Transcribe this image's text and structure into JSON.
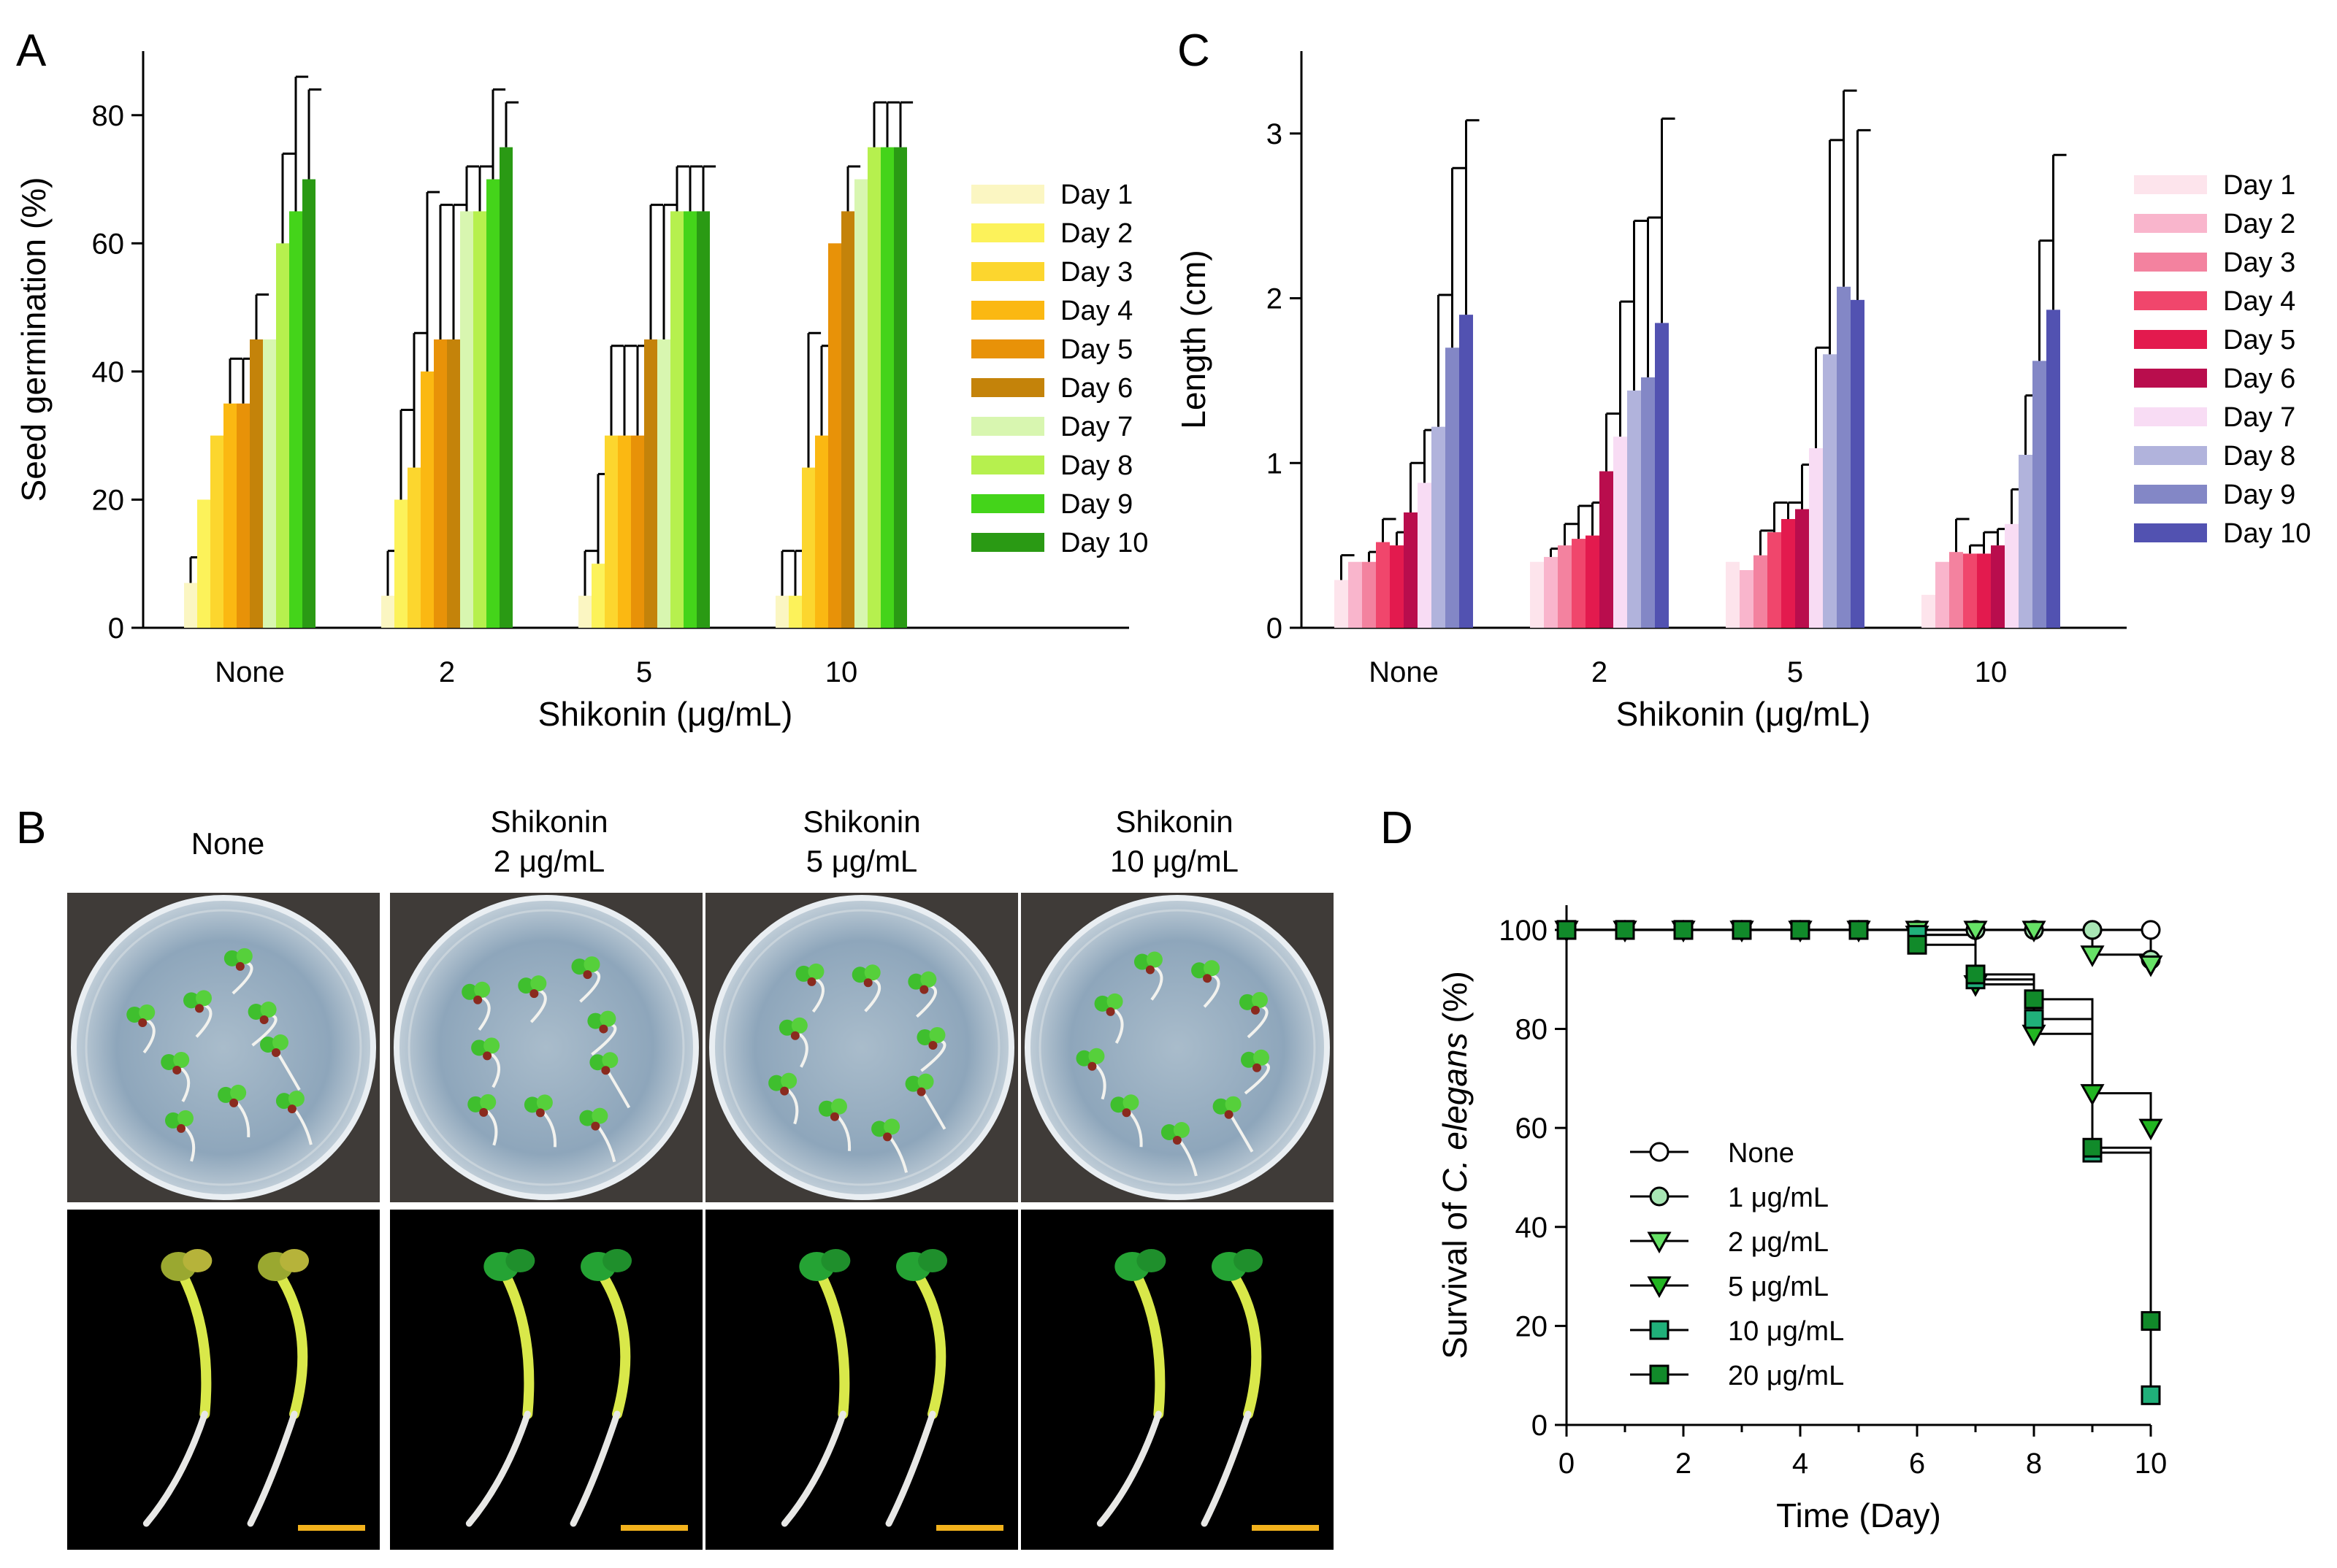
{
  "panels": {
    "A": "A",
    "B": "B",
    "C": "C",
    "D": "D"
  },
  "chart_data": [
    {
      "id": "A",
      "type": "bar",
      "title": "",
      "xlabel": "Shikonin (μg/mL)",
      "ylabel": "Seed germination (%)",
      "ylim": [
        0,
        90
      ],
      "yticks": [
        0,
        20,
        40,
        60,
        80
      ],
      "categories": [
        "None",
        "2",
        "5",
        "10"
      ],
      "grid": false,
      "legend": "right",
      "series": [
        {
          "name": "Day 1",
          "color": "#fbf6c2",
          "values": [
            7,
            5,
            5,
            5
          ],
          "errors": [
            4,
            7,
            7,
            7
          ]
        },
        {
          "name": "Day 2",
          "color": "#fcf25a",
          "values": [
            20,
            20,
            10,
            5
          ],
          "errors": [
            0,
            14,
            14,
            7
          ]
        },
        {
          "name": "Day 3",
          "color": "#fcd62e",
          "values": [
            30,
            25,
            30,
            25
          ],
          "errors": [
            0,
            21,
            14,
            21
          ]
        },
        {
          "name": "Day 4",
          "color": "#fbb812",
          "values": [
            35,
            40,
            30,
            30
          ],
          "errors": [
            7,
            28,
            14,
            14
          ]
        },
        {
          "name": "Day 5",
          "color": "#e89208",
          "values": [
            35,
            45,
            30,
            60
          ],
          "errors": [
            7,
            21,
            14,
            0
          ]
        },
        {
          "name": "Day 6",
          "color": "#c4830a",
          "values": [
            45,
            45,
            45,
            65
          ],
          "errors": [
            7,
            21,
            21,
            7
          ]
        },
        {
          "name": "Day 7",
          "color": "#d8f6b0",
          "values": [
            45,
            65,
            45,
            70
          ],
          "errors": [
            0,
            7,
            21,
            0
          ]
        },
        {
          "name": "Day 8",
          "color": "#b6f04e",
          "values": [
            60,
            65,
            65,
            75
          ],
          "errors": [
            14,
            7,
            7,
            7
          ]
        },
        {
          "name": "Day 9",
          "color": "#44d41a",
          "values": [
            65,
            70,
            65,
            75
          ],
          "errors": [
            21,
            14,
            7,
            7
          ]
        },
        {
          "name": "Day 10",
          "color": "#2a9a14",
          "values": [
            70,
            75,
            65,
            75
          ],
          "errors": [
            14,
            7,
            7,
            7
          ]
        }
      ]
    },
    {
      "id": "C",
      "type": "bar",
      "title": "",
      "xlabel": "Shikonin (μg/mL)",
      "ylabel": "Length (cm)",
      "ylim": [
        0,
        3.5
      ],
      "yticks": [
        0,
        1,
        2,
        3
      ],
      "categories": [
        "None",
        "2",
        "5",
        "10"
      ],
      "grid": false,
      "legend": "right",
      "series": [
        {
          "name": "Day 1",
          "color": "#fde4ec",
          "values": [
            0.29,
            0.4,
            0.4,
            0.2
          ],
          "errors": [
            0.15,
            0,
            0,
            0
          ]
        },
        {
          "name": "Day 2",
          "color": "#f9b5cc",
          "values": [
            0.4,
            0.43,
            0.35,
            0.4
          ],
          "errors": [
            0,
            0.05,
            0,
            0
          ]
        },
        {
          "name": "Day 3",
          "color": "#f3829f",
          "values": [
            0.4,
            0.5,
            0.44,
            0.46
          ],
          "errors": [
            0.06,
            0.13,
            0.15,
            0.2
          ]
        },
        {
          "name": "Day 4",
          "color": "#f0466c",
          "values": [
            0.52,
            0.54,
            0.58,
            0.45
          ],
          "errors": [
            0.14,
            0.2,
            0.18,
            0.05
          ]
        },
        {
          "name": "Day 5",
          "color": "#e31a4e",
          "values": [
            0.5,
            0.56,
            0.66,
            0.45
          ],
          "errors": [
            0.08,
            0.2,
            0.1,
            0.13
          ]
        },
        {
          "name": "Day 6",
          "color": "#b90d4d",
          "values": [
            0.7,
            0.95,
            0.72,
            0.5
          ],
          "errors": [
            0.3,
            0.35,
            0.27,
            0.1
          ]
        },
        {
          "name": "Day 7",
          "color": "#f8dcf4",
          "values": [
            0.88,
            1.16,
            1.09,
            0.63
          ],
          "errors": [
            0.32,
            0.82,
            0.61,
            0.21
          ]
        },
        {
          "name": "Day 8",
          "color": "#b1b3dc",
          "values": [
            1.22,
            1.44,
            1.66,
            1.05
          ],
          "errors": [
            0.8,
            1.03,
            1.3,
            0.36
          ]
        },
        {
          "name": "Day 9",
          "color": "#8387c6",
          "values": [
            1.7,
            1.52,
            2.07,
            1.62
          ],
          "errors": [
            1.09,
            0.97,
            1.19,
            0.73
          ]
        },
        {
          "name": "Day 10",
          "color": "#5252b1",
          "values": [
            1.9,
            1.85,
            1.99,
            1.93
          ],
          "errors": [
            1.18,
            1.24,
            1.03,
            0.94
          ]
        }
      ]
    },
    {
      "id": "D",
      "type": "line",
      "title": "",
      "xlabel": "Time (Day)",
      "ylabel_parts": [
        "Survival of ",
        "C. elegans",
        " (%)"
      ],
      "xlim": [
        0,
        10
      ],
      "ylim": [
        0,
        105
      ],
      "xticks": [
        0,
        2,
        4,
        6,
        8,
        10
      ],
      "yticks": [
        0,
        20,
        40,
        60,
        80,
        100
      ],
      "grid": false,
      "legend": "bottom-left",
      "x": [
        0,
        1,
        2,
        3,
        4,
        5,
        6,
        7,
        8,
        9,
        10
      ],
      "series": [
        {
          "name": "None",
          "marker": "circle",
          "fill": "#ffffff",
          "values": [
            100,
            100,
            100,
            100,
            100,
            100,
            100,
            100,
            100,
            100,
            100
          ]
        },
        {
          "name": "1 μg/mL",
          "marker": "circle",
          "fill": "#a8e6b4",
          "values": [
            100,
            100,
            100,
            100,
            100,
            100,
            100,
            100,
            100,
            100,
            94
          ]
        },
        {
          "name": "2 μg/mL",
          "marker": "triangle",
          "fill": "#66e266",
          "values": [
            100,
            100,
            100,
            100,
            100,
            100,
            100,
            100,
            100,
            95,
            93
          ]
        },
        {
          "name": "5 μg/mL",
          "marker": "triangle",
          "fill": "#22b522",
          "values": [
            100,
            100,
            100,
            100,
            100,
            100,
            99,
            89,
            79,
            67,
            60
          ]
        },
        {
          "name": "10 μg/mL",
          "marker": "square",
          "fill": "#20b07a",
          "values": [
            100,
            100,
            100,
            100,
            100,
            100,
            99,
            90,
            82,
            55,
            6
          ]
        },
        {
          "name": "20 μg/mL",
          "marker": "square",
          "fill": "#118a2a",
          "values": [
            100,
            100,
            100,
            100,
            100,
            100,
            97,
            91,
            86,
            56,
            21
          ]
        }
      ]
    }
  ],
  "photos": {
    "captions": [
      {
        "line1": "None",
        "line2": ""
      },
      {
        "line1": "Shikonin",
        "line2": "2 μg/mL"
      },
      {
        "line1": "Shikonin",
        "line2": "5 μg/mL"
      },
      {
        "line1": "Shikonin",
        "line2": "10 μg/mL"
      }
    ]
  }
}
